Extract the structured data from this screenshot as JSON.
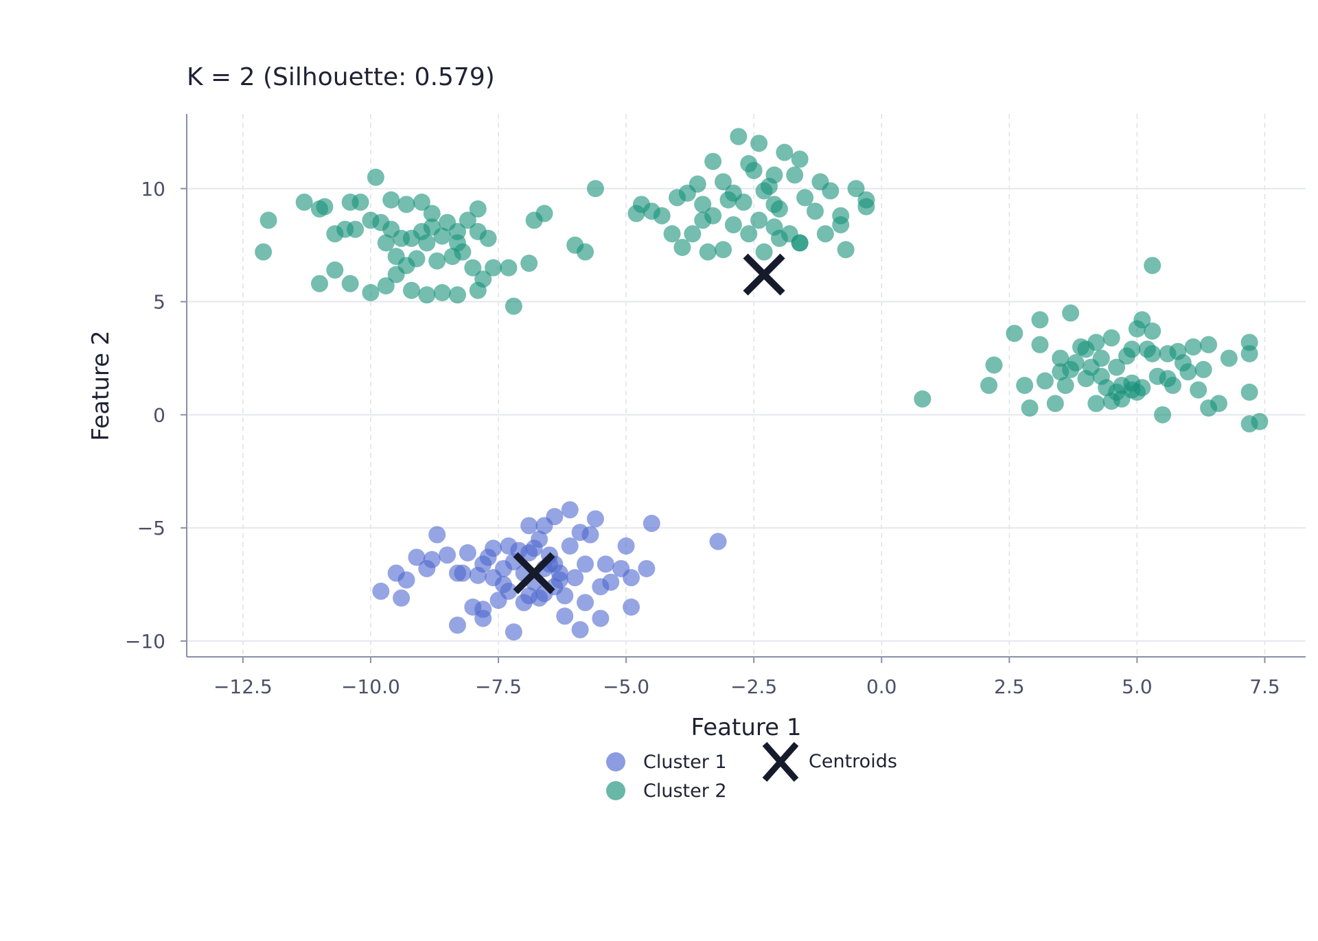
{
  "chart_data": {
    "type": "scatter",
    "title": "K = 2 (Silhouette: 0.579)",
    "xlabel": "Feature 1",
    "ylabel": "Feature 2",
    "xlim": [
      -13.6,
      8.3
    ],
    "ylim": [
      -10.7,
      13.3
    ],
    "xticks": [
      -12.5,
      -10.0,
      -7.5,
      -5.0,
      -2.5,
      0.0,
      2.5,
      5.0,
      7.5
    ],
    "xtick_labels": [
      "−12.5",
      "−10.0",
      "−7.5",
      "−5.0",
      "−2.5",
      "0.0",
      "2.5",
      "5.0",
      "7.5"
    ],
    "yticks": [
      -10,
      -5,
      0,
      5,
      10
    ],
    "ytick_labels": [
      "−10",
      "−5",
      "0",
      "5",
      "10"
    ],
    "grid": true,
    "legend_position": "bottom-center",
    "colors": {
      "cluster1": "#4f67cf",
      "cluster2": "#17917a",
      "centroid": "#161b2c"
    },
    "series": [
      {
        "name": "Cluster 1",
        "points": [
          [
            -7.2,
            -6.5
          ],
          [
            -7.0,
            -7.0
          ],
          [
            -6.8,
            -7.4
          ],
          [
            -6.6,
            -6.8
          ],
          [
            -6.4,
            -7.6
          ],
          [
            -6.9,
            -8.0
          ],
          [
            -7.3,
            -7.8
          ],
          [
            -7.6,
            -7.2
          ],
          [
            -6.5,
            -6.2
          ],
          [
            -6.3,
            -7.0
          ],
          [
            -7.1,
            -6.0
          ],
          [
            -6.7,
            -5.5
          ],
          [
            -7.4,
            -6.8
          ],
          [
            -7.8,
            -6.6
          ],
          [
            -7.5,
            -8.2
          ],
          [
            -6.2,
            -8.0
          ],
          [
            -6.0,
            -7.2
          ],
          [
            -5.8,
            -6.6
          ],
          [
            -6.1,
            -5.8
          ],
          [
            -6.6,
            -4.9
          ],
          [
            -6.9,
            -4.9
          ],
          [
            -6.4,
            -4.5
          ],
          [
            -6.1,
            -4.2
          ],
          [
            -5.9,
            -5.2
          ],
          [
            -5.6,
            -4.6
          ],
          [
            -5.4,
            -6.6
          ],
          [
            -5.1,
            -6.8
          ],
          [
            -4.9,
            -7.2
          ],
          [
            -5.0,
            -5.8
          ],
          [
            -4.6,
            -6.8
          ],
          [
            -4.5,
            -4.8
          ],
          [
            -4.9,
            -8.5
          ],
          [
            -5.5,
            -9.0
          ],
          [
            -5.9,
            -9.5
          ],
          [
            -6.2,
            -8.9
          ],
          [
            -5.8,
            -8.3
          ],
          [
            -5.5,
            -7.6
          ],
          [
            -5.3,
            -7.4
          ],
          [
            -7.2,
            -9.6
          ],
          [
            -7.8,
            -9.0
          ],
          [
            -8.3,
            -9.3
          ],
          [
            -8.0,
            -8.5
          ],
          [
            -7.8,
            -8.6
          ],
          [
            -8.2,
            -7.0
          ],
          [
            -8.5,
            -6.2
          ],
          [
            -8.7,
            -5.3
          ],
          [
            -8.8,
            -6.4
          ],
          [
            -8.9,
            -6.8
          ],
          [
            -9.1,
            -6.3
          ],
          [
            -9.3,
            -7.3
          ],
          [
            -9.5,
            -7.0
          ],
          [
            -9.4,
            -8.1
          ],
          [
            -9.8,
            -7.8
          ],
          [
            -8.1,
            -6.1
          ],
          [
            -7.6,
            -5.9
          ],
          [
            -7.3,
            -5.8
          ],
          [
            -6.8,
            -5.9
          ],
          [
            -6.5,
            -6.6
          ],
          [
            -6.7,
            -8.1
          ],
          [
            -7.0,
            -8.3
          ],
          [
            -7.4,
            -7.5
          ],
          [
            -6.6,
            -7.9
          ],
          [
            -6.3,
            -7.3
          ],
          [
            -5.7,
            -5.3
          ],
          [
            -3.2,
            -5.6
          ],
          [
            -7.9,
            -7.1
          ],
          [
            -8.3,
            -7.0
          ],
          [
            -7.7,
            -6.3
          ],
          [
            -6.9,
            -6.1
          ],
          [
            -6.4,
            -6.6
          ]
        ]
      },
      {
        "name": "Cluster 2",
        "points": [
          [
            -12.0,
            8.6
          ],
          [
            -12.1,
            7.2
          ],
          [
            -11.3,
            9.4
          ],
          [
            -11.0,
            9.1
          ],
          [
            -10.9,
            9.2
          ],
          [
            -10.7,
            8.0
          ],
          [
            -10.5,
            8.2
          ],
          [
            -10.4,
            9.4
          ],
          [
            -10.2,
            9.4
          ],
          [
            -10.3,
            8.2
          ],
          [
            -10.0,
            8.6
          ],
          [
            -9.9,
            10.5
          ],
          [
            -9.8,
            8.5
          ],
          [
            -9.6,
            8.2
          ],
          [
            -9.4,
            7.8
          ],
          [
            -9.7,
            7.6
          ],
          [
            -9.5,
            7.0
          ],
          [
            -9.2,
            7.8
          ],
          [
            -9.0,
            8.1
          ],
          [
            -8.9,
            7.6
          ],
          [
            -8.8,
            8.3
          ],
          [
            -8.6,
            7.9
          ],
          [
            -8.5,
            8.5
          ],
          [
            -8.3,
            7.6
          ],
          [
            -8.1,
            8.6
          ],
          [
            -7.9,
            8.1
          ],
          [
            -7.7,
            7.8
          ],
          [
            -7.9,
            9.1
          ],
          [
            -8.2,
            7.2
          ],
          [
            -8.4,
            7.0
          ],
          [
            -8.7,
            6.8
          ],
          [
            -9.1,
            6.9
          ],
          [
            -9.3,
            6.6
          ],
          [
            -9.5,
            6.2
          ],
          [
            -9.7,
            5.7
          ],
          [
            -10.0,
            5.4
          ],
          [
            -10.4,
            5.8
          ],
          [
            -10.7,
            6.4
          ],
          [
            -11.0,
            5.8
          ],
          [
            -9.2,
            5.5
          ],
          [
            -8.9,
            5.3
          ],
          [
            -8.6,
            5.4
          ],
          [
            -8.3,
            5.3
          ],
          [
            -7.9,
            5.5
          ],
          [
            -8.0,
            6.5
          ],
          [
            -7.6,
            6.5
          ],
          [
            -7.3,
            6.5
          ],
          [
            -7.2,
            4.8
          ],
          [
            -7.8,
            6.0
          ],
          [
            -9.3,
            9.3
          ],
          [
            -9.0,
            9.4
          ],
          [
            -8.8,
            8.9
          ],
          [
            -9.6,
            9.5
          ],
          [
            -8.3,
            8.1
          ],
          [
            -6.8,
            8.6
          ],
          [
            -6.6,
            8.9
          ],
          [
            -6.0,
            7.5
          ],
          [
            -5.8,
            7.2
          ],
          [
            -5.6,
            10.0
          ],
          [
            -6.9,
            6.7
          ],
          [
            -3.6,
            10.2
          ],
          [
            -3.5,
            9.3
          ],
          [
            -3.3,
            11.2
          ],
          [
            -3.1,
            10.3
          ],
          [
            -2.9,
            9.8
          ],
          [
            -2.8,
            12.3
          ],
          [
            -2.6,
            11.1
          ],
          [
            -2.4,
            12.0
          ],
          [
            -2.3,
            9.9
          ],
          [
            -2.1,
            10.6
          ],
          [
            -2.1,
            9.3
          ],
          [
            -1.9,
            11.6
          ],
          [
            -1.6,
            11.3
          ],
          [
            -1.5,
            9.6
          ],
          [
            -1.3,
            9.0
          ],
          [
            -1.2,
            10.3
          ],
          [
            -1.0,
            9.9
          ],
          [
            -0.8,
            8.4
          ],
          [
            -0.7,
            7.3
          ],
          [
            -0.5,
            10.0
          ],
          [
            -0.3,
            9.5
          ],
          [
            -0.3,
            9.2
          ],
          [
            -0.8,
            8.8
          ],
          [
            -1.1,
            8.0
          ],
          [
            -1.6,
            7.6
          ],
          [
            -1.8,
            8.0
          ],
          [
            -2.1,
            8.3
          ],
          [
            -2.4,
            8.6
          ],
          [
            -2.6,
            8.0
          ],
          [
            -2.9,
            8.4
          ],
          [
            -3.1,
            7.3
          ],
          [
            -3.3,
            8.8
          ],
          [
            -3.5,
            8.6
          ],
          [
            -3.7,
            8.0
          ],
          [
            -3.9,
            7.4
          ],
          [
            -4.1,
            8.0
          ],
          [
            -4.3,
            8.8
          ],
          [
            -4.5,
            9.0
          ],
          [
            -4.7,
            9.3
          ],
          [
            -4.8,
            8.9
          ],
          [
            -4.0,
            9.6
          ],
          [
            -3.8,
            9.8
          ],
          [
            -3.0,
            9.5
          ],
          [
            -2.7,
            9.4
          ],
          [
            -2.2,
            10.1
          ],
          [
            -2.0,
            9.1
          ],
          [
            -1.7,
            10.6
          ],
          [
            -2.5,
            10.8
          ],
          [
            -3.4,
            7.2
          ],
          [
            -2.3,
            7.2
          ],
          [
            -2.0,
            7.8
          ],
          [
            -1.6,
            7.6
          ],
          [
            0.8,
            0.7
          ],
          [
            2.1,
            1.3
          ],
          [
            2.2,
            2.2
          ],
          [
            2.6,
            3.6
          ],
          [
            2.8,
            1.3
          ],
          [
            2.9,
            0.3
          ],
          [
            3.1,
            4.2
          ],
          [
            3.1,
            3.1
          ],
          [
            3.2,
            1.5
          ],
          [
            3.4,
            0.5
          ],
          [
            3.5,
            2.5
          ],
          [
            3.6,
            1.3
          ],
          [
            3.7,
            4.5
          ],
          [
            3.8,
            2.3
          ],
          [
            3.9,
            3.0
          ],
          [
            4.0,
            1.6
          ],
          [
            4.1,
            2.1
          ],
          [
            4.2,
            3.2
          ],
          [
            4.3,
            2.5
          ],
          [
            4.4,
            1.2
          ],
          [
            4.5,
            3.4
          ],
          [
            4.6,
            2.1
          ],
          [
            4.7,
            0.7
          ],
          [
            4.8,
            2.6
          ],
          [
            4.9,
            1.4
          ],
          [
            5.0,
            3.8
          ],
          [
            5.1,
            4.2
          ],
          [
            5.2,
            2.9
          ],
          [
            5.3,
            6.6
          ],
          [
            5.3,
            3.7
          ],
          [
            5.4,
            1.7
          ],
          [
            5.5,
            0.0
          ],
          [
            5.6,
            2.7
          ],
          [
            5.7,
            1.3
          ],
          [
            5.8,
            2.8
          ],
          [
            5.9,
            2.3
          ],
          [
            6.0,
            1.9
          ],
          [
            6.1,
            3.0
          ],
          [
            6.2,
            1.1
          ],
          [
            6.3,
            2.0
          ],
          [
            6.4,
            3.1
          ],
          [
            6.4,
            0.3
          ],
          [
            6.6,
            0.5
          ],
          [
            6.8,
            2.5
          ],
          [
            7.2,
            1.0
          ],
          [
            7.2,
            3.2
          ],
          [
            7.2,
            2.7
          ],
          [
            7.2,
            -0.4
          ],
          [
            7.4,
            -0.3
          ],
          [
            4.6,
            1.0
          ],
          [
            4.9,
            1.1
          ],
          [
            5.1,
            1.2
          ],
          [
            4.7,
            1.3
          ],
          [
            4.3,
            1.7
          ],
          [
            4.0,
            2.9
          ],
          [
            3.7,
            2.0
          ],
          [
            4.9,
            2.9
          ],
          [
            5.3,
            2.7
          ],
          [
            5.6,
            1.6
          ],
          [
            4.5,
            0.6
          ],
          [
            3.5,
            1.9
          ],
          [
            5.0,
            1.0
          ],
          [
            4.2,
            0.5
          ]
        ]
      },
      {
        "name": "Centroids",
        "points": [
          [
            -6.8,
            -7.0
          ],
          [
            -2.3,
            6.2
          ]
        ]
      }
    ]
  }
}
